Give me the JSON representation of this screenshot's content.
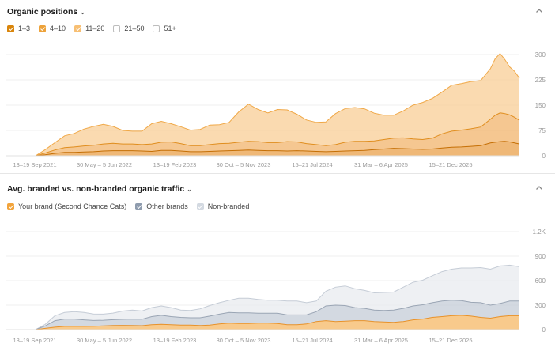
{
  "panel1": {
    "title": "Organic positions",
    "legend": [
      {
        "label": "1–3",
        "checked": true,
        "color": "#d9850b"
      },
      {
        "label": "4–10",
        "checked": true,
        "color": "#eda23a"
      },
      {
        "label": "11–20",
        "checked": true,
        "color": "#f7bf73"
      },
      {
        "label": "21–50",
        "checked": false,
        "color": "#ffffff"
      },
      {
        "label": "51+",
        "checked": false,
        "color": "#ffffff"
      }
    ]
  },
  "panel2": {
    "title": "Avg. branded vs. non-branded organic traffic",
    "legend": [
      {
        "label": "Your brand (Second Chance Cats)",
        "checked": true,
        "color": "#f2a43c"
      },
      {
        "label": "Other brands",
        "checked": true,
        "color": "#8f9cae"
      },
      {
        "label": "Non-branded",
        "checked": true,
        "color": "#d3d9e1"
      }
    ]
  },
  "chart_data": [
    {
      "type": "area",
      "title": "Organic positions",
      "x_labels": [
        "13–19 Sep 2021",
        "30 May – 5 Jun 2022",
        "13–19 Feb 2023",
        "30 Oct – 5 Nov 2023",
        "15–21 Jul 2024",
        "31 Mar – 6 Apr 2025",
        "15–21 Dec 2025"
      ],
      "y_ticks": [
        "300",
        "225",
        "150",
        "75",
        "0"
      ],
      "ylim": [
        0,
        300
      ],
      "stacked": true,
      "grid": true,
      "x": [
        0,
        0.02,
        0.04,
        0.06,
        0.08,
        0.1,
        0.12,
        0.14,
        0.16,
        0.18,
        0.2,
        0.22,
        0.24,
        0.26,
        0.28,
        0.3,
        0.32,
        0.34,
        0.36,
        0.38,
        0.4,
        0.42,
        0.44,
        0.46,
        0.48,
        0.5,
        0.52,
        0.54,
        0.56,
        0.58,
        0.6,
        0.62,
        0.64,
        0.66,
        0.68,
        0.7,
        0.72,
        0.74,
        0.76,
        0.78,
        0.8,
        0.82,
        0.84,
        0.86,
        0.88,
        0.9,
        0.92,
        0.94,
        0.95,
        0.96,
        0.97,
        0.98,
        0.99,
        1.0
      ],
      "series": [
        {
          "name": "1–3",
          "color": "#e9a04a",
          "values": [
            0,
            3,
            7,
            10,
            10,
            11,
            12,
            14,
            15,
            15,
            15,
            14,
            13,
            16,
            16,
            14,
            12,
            12,
            13,
            14,
            15,
            16,
            17,
            16,
            15,
            15,
            14,
            15,
            14,
            13,
            12,
            13,
            14,
            15,
            16,
            18,
            20,
            22,
            21,
            20,
            19,
            20,
            23,
            25,
            26,
            28,
            30,
            38,
            40,
            42,
            43,
            41,
            38,
            35
          ]
        },
        {
          "name": "4–10",
          "color": "#f2b46c",
          "values": [
            0,
            5,
            10,
            14,
            16,
            18,
            19,
            21,
            22,
            20,
            20,
            19,
            22,
            24,
            25,
            22,
            18,
            18,
            20,
            22,
            22,
            24,
            26,
            26,
            24,
            24,
            28,
            26,
            22,
            20,
            18,
            20,
            26,
            28,
            27,
            26,
            28,
            30,
            32,
            30,
            29,
            32,
            42,
            48,
            50,
            52,
            55,
            70,
            80,
            85,
            82,
            80,
            76,
            70
          ]
        },
        {
          "name": "11–20",
          "color": "#f8cd95",
          "values": [
            0,
            10,
            22,
            35,
            40,
            50,
            56,
            58,
            50,
            40,
            38,
            40,
            60,
            62,
            54,
            50,
            46,
            48,
            58,
            56,
            62,
            90,
            110,
            95,
            88,
            98,
            94,
            82,
            70,
            66,
            70,
            92,
            100,
            100,
            96,
            82,
            72,
            68,
            80,
            100,
            110,
            118,
            124,
            136,
            138,
            140,
            138,
            150,
            168,
            176,
            160,
            142,
            136,
            125
          ]
        }
      ]
    },
    {
      "type": "area",
      "title": "Avg. branded vs. non-branded organic traffic",
      "x_labels": [
        "13–19 Sep 2021",
        "30 May – 5 Jun 2022",
        "13–19 Feb 2023",
        "30 Oct – 5 Nov 2023",
        "15–21 Jul 2024",
        "31 Mar – 6 Apr 2025",
        "15–21 Dec 2025"
      ],
      "y_ticks": [
        "1.2K",
        "900",
        "600",
        "300",
        "0"
      ],
      "ylim": [
        0,
        1200
      ],
      "stacked": true,
      "grid": true,
      "x": [
        0,
        0.02,
        0.04,
        0.06,
        0.08,
        0.1,
        0.12,
        0.14,
        0.16,
        0.18,
        0.2,
        0.22,
        0.24,
        0.26,
        0.28,
        0.3,
        0.32,
        0.34,
        0.36,
        0.38,
        0.4,
        0.42,
        0.44,
        0.46,
        0.48,
        0.5,
        0.52,
        0.54,
        0.56,
        0.58,
        0.6,
        0.62,
        0.64,
        0.66,
        0.68,
        0.7,
        0.72,
        0.74,
        0.76,
        0.78,
        0.8,
        0.82,
        0.84,
        0.86,
        0.88,
        0.9,
        0.92,
        0.94,
        0.96,
        0.98,
        1.0
      ],
      "series": [
        {
          "name": "Your brand (Second Chance Cats)",
          "color": "#f6b866",
          "values": [
            0,
            15,
            30,
            40,
            40,
            40,
            42,
            45,
            50,
            52,
            50,
            48,
            60,
            65,
            60,
            55,
            55,
            50,
            55,
            70,
            80,
            75,
            75,
            80,
            80,
            75,
            60,
            60,
            70,
            100,
            110,
            100,
            105,
            110,
            110,
            100,
            95,
            90,
            100,
            120,
            130,
            150,
            160,
            170,
            175,
            165,
            150,
            140,
            160,
            170,
            170
          ]
        },
        {
          "name": "Other brands",
          "color": "#c4ccd7",
          "values": [
            0,
            30,
            80,
            90,
            90,
            80,
            70,
            70,
            72,
            75,
            80,
            80,
            100,
            110,
            100,
            95,
            90,
            95,
            110,
            120,
            130,
            130,
            130,
            120,
            120,
            125,
            120,
            120,
            110,
            120,
            180,
            200,
            190,
            160,
            150,
            140,
            140,
            150,
            160,
            170,
            175,
            180,
            190,
            190,
            180,
            170,
            180,
            160,
            160,
            180,
            180
          ]
        },
        {
          "name": "Non-branded",
          "color": "#e8ebef",
          "values": [
            0,
            20,
            60,
            80,
            90,
            90,
            80,
            75,
            80,
            100,
            110,
            100,
            110,
            115,
            110,
            90,
            90,
            110,
            130,
            140,
            150,
            180,
            180,
            170,
            160,
            160,
            170,
            170,
            150,
            130,
            180,
            220,
            240,
            230,
            220,
            210,
            220,
            220,
            260,
            290,
            300,
            330,
            360,
            380,
            400,
            420,
            430,
            440,
            460,
            440,
            420
          ]
        }
      ]
    }
  ]
}
